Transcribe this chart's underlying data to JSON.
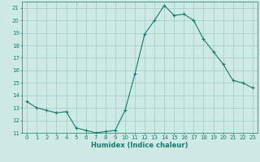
{
  "x": [
    0,
    1,
    2,
    3,
    4,
    5,
    6,
    7,
    8,
    9,
    10,
    11,
    12,
    13,
    14,
    15,
    16,
    17,
    18,
    19,
    20,
    21,
    22,
    23
  ],
  "y": [
    13.5,
    13.0,
    12.8,
    12.6,
    12.7,
    11.4,
    11.2,
    11.0,
    11.1,
    11.2,
    12.8,
    15.7,
    18.9,
    20.0,
    21.2,
    20.4,
    20.5,
    20.0,
    18.5,
    17.5,
    16.5,
    15.2,
    15.0,
    14.6
  ],
  "line_color": "#1a7a6e",
  "marker": "+",
  "marker_size": 3,
  "bg_color": "#cdeae4",
  "grid_color": "#a8cfc8",
  "xlabel": "Humidex (Indice chaleur)",
  "ylim": [
    11,
    21.5
  ],
  "xlim": [
    -0.5,
    23.5
  ],
  "yticks": [
    11,
    12,
    13,
    14,
    15,
    16,
    17,
    18,
    19,
    20,
    21
  ],
  "xticks": [
    0,
    1,
    2,
    3,
    4,
    5,
    6,
    7,
    8,
    9,
    10,
    11,
    12,
    13,
    14,
    15,
    16,
    17,
    18,
    19,
    20,
    21,
    22,
    23
  ],
  "tick_color": "#1a7a6e",
  "xlabel_color": "#1a7a6e",
  "spine_color": "#1a7a6e",
  "tick_fontsize": 5.0,
  "xlabel_fontsize": 6.0,
  "linewidth": 0.8,
  "markeredgewidth": 0.8
}
